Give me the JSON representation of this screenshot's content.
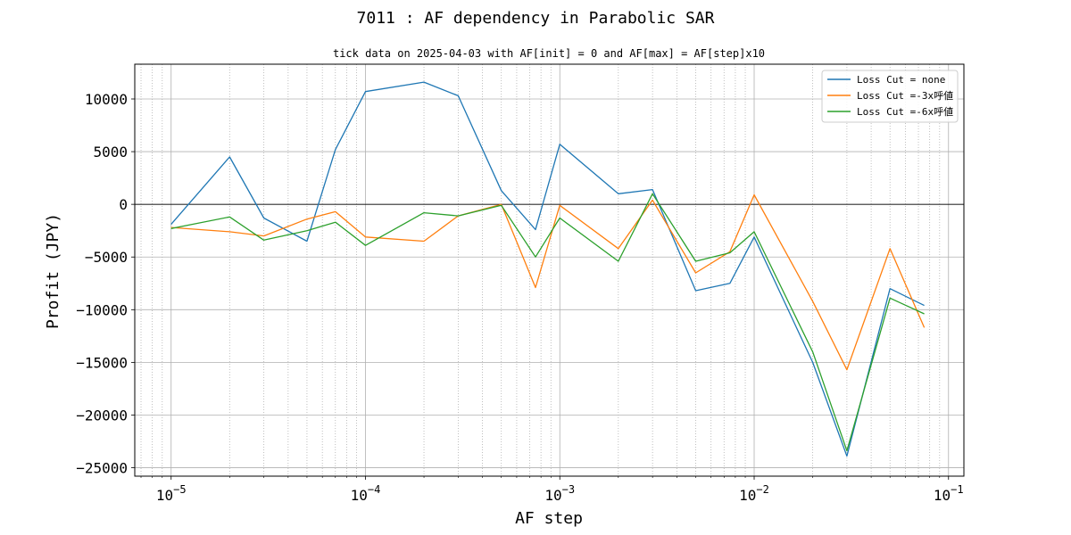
{
  "chart_data": {
    "type": "line",
    "title": "7011 : AF dependency in Parabolic SAR",
    "subtitle": "tick data on 2025-04-03 with AF[init] = 0 and AF[max] = AF[step]x10",
    "xlabel": "AF step",
    "ylabel": "Profit (JPY)",
    "xscale": "log",
    "xlim": [
      6.5e-06,
      0.12
    ],
    "ylim": [
      -25800,
      13300
    ],
    "x_ticks": [
      {
        "value": 1e-05,
        "base": "10",
        "exp": "−5"
      },
      {
        "value": 0.0001,
        "base": "10",
        "exp": "−4"
      },
      {
        "value": 0.001,
        "base": "10",
        "exp": "−3"
      },
      {
        "value": 0.01,
        "base": "10",
        "exp": "−2"
      },
      {
        "value": 0.1,
        "base": "10",
        "exp": "−1"
      }
    ],
    "y_ticks": [
      {
        "value": 10000,
        "label": "10000"
      },
      {
        "value": 5000,
        "label": "5000"
      },
      {
        "value": 0,
        "label": "0"
      },
      {
        "value": -5000,
        "label": "−5000"
      },
      {
        "value": -10000,
        "label": "−10000"
      },
      {
        "value": -15000,
        "label": "−15000"
      },
      {
        "value": -20000,
        "label": "−20000"
      },
      {
        "value": -25000,
        "label": "−25000"
      }
    ],
    "grid": true,
    "zero_line": true,
    "legend_position": "top-right",
    "x": [
      1e-05,
      2e-05,
      3e-05,
      5e-05,
      7e-05,
      0.0001,
      0.0002,
      0.0003,
      0.0005,
      0.00075,
      0.001,
      0.002,
      0.003,
      0.005,
      0.0075,
      0.01,
      0.02,
      0.03,
      0.05,
      0.075
    ],
    "series": [
      {
        "name": "Loss Cut = none",
        "color": "#1f77b4",
        "values": [
          -1900,
          4500,
          -1300,
          -3500,
          5200,
          10700,
          11600,
          10300,
          1300,
          -2400,
          5700,
          1000,
          1400,
          -8200,
          -7500,
          -3100,
          -15000,
          -23900,
          -8000,
          -9600
        ]
      },
      {
        "name": "Loss Cut =-3x呼値",
        "color": "#ff7f0e",
        "values": [
          -2200,
          -2600,
          -3000,
          -1400,
          -700,
          -3100,
          -3500,
          -1100,
          0,
          -7900,
          -100,
          -4200,
          400,
          -6500,
          -4500,
          900,
          -9200,
          -15700,
          -4200,
          -11700
        ]
      },
      {
        "name": "Loss Cut =-6x呼値",
        "color": "#2ca02c",
        "values": [
          -2300,
          -1200,
          -3400,
          -2500,
          -1700,
          -3900,
          -800,
          -1100,
          -100,
          -5000,
          -1300,
          -5400,
          1000,
          -5400,
          -4600,
          -2600,
          -14000,
          -23400,
          -8900,
          -10400
        ]
      }
    ]
  }
}
